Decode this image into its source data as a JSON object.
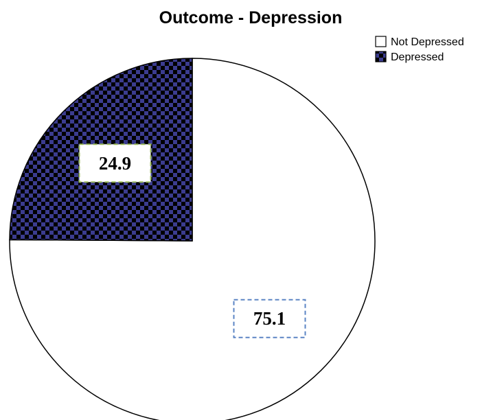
{
  "chart_data": {
    "type": "pie",
    "title": "Outcome - Depression",
    "categories": [
      "Not Depressed",
      "Depressed"
    ],
    "values": [
      75.1,
      24.9
    ],
    "data_labels": [
      "75.1",
      "24.9"
    ],
    "legend_position": "top-right",
    "start_angle": "12 o'clock",
    "colors": {
      "not_depressed_fill": "#ffffff",
      "depressed_pattern_dark": "#000000",
      "depressed_pattern_light": "#3b3c8f",
      "outline": "#000000",
      "label_box_not_depressed": "#5b84c4",
      "label_box_depressed": "#9bbb59"
    }
  }
}
